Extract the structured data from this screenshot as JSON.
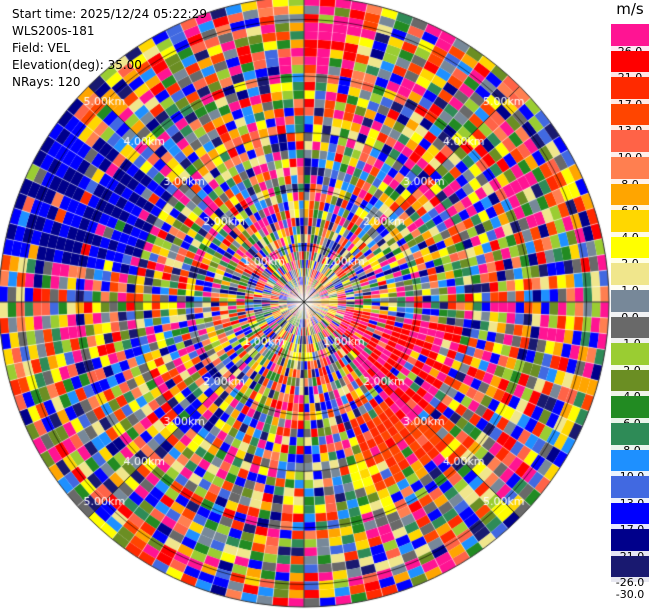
{
  "info": {
    "start_time": "Start time: 2025/12/24 05:22:29",
    "instrument": "WLS200s-181",
    "field": "Field: VEL",
    "elevation": "Elevation(deg): 35.00",
    "nrays": "NRays: 120"
  },
  "colorbar": {
    "unit": "m/s",
    "levels": [
      "26.0",
      "21.0",
      "17.0",
      "13.0",
      "10.0",
      "8.0",
      "6.0",
      "4.0",
      "2.0",
      "1.0",
      "0.0",
      "-1.0",
      "-2.0",
      "-4.0",
      "-6.0",
      "-8.0",
      "-10.0",
      "-13.0",
      "-17.0",
      "-21.0",
      "-26.0"
    ],
    "bottom_label": "-30.0",
    "colors": [
      "#ff1493",
      "#ff0000",
      "#ff2a00",
      "#ff4500",
      "#ff6347",
      "#ff7f50",
      "#ffa500",
      "#ffd700",
      "#ffff00",
      "#f0e68c",
      "#778899",
      "#696969",
      "#9acd32",
      "#6b8e23",
      "#228b22",
      "#2e8b57",
      "#1e90ff",
      "#4169e1",
      "#0000ff",
      "#00008b",
      "#191970"
    ]
  },
  "chart_data": {
    "type": "heatmap",
    "projection": "polar-ppi",
    "field": "VEL",
    "units": "m/s",
    "n_rays": 120,
    "range_rings": [
      "1.00km",
      "2.00km",
      "3.00km",
      "4.00km",
      "5.00km"
    ],
    "max_range_km": 5.4,
    "value_range": [
      -30.0,
      26.0
    ],
    "note_regions": [
      {
        "azimuth_deg_range": [
          100,
          140
        ],
        "range_km": [
          0.7,
          2.8
        ],
        "dominant_value_ms": 26
      },
      {
        "azimuth_deg_range": [
          130,
          160
        ],
        "range_km": [
          2.2,
          3.6
        ],
        "dominant_value_ms": 17
      },
      {
        "azimuth_deg_range": [
          155,
          165
        ],
        "range_km": [
          3.0,
          4.3
        ],
        "dominant_value_ms": 2
      },
      {
        "azimuth_deg_range": [
          160,
          170
        ],
        "range_km": [
          3.6,
          4.3
        ],
        "dominant_value_ms": -6
      },
      {
        "azimuth_deg_range": [
          80,
          110
        ],
        "range_km": [
          0.2,
          0.6
        ],
        "dominant_value_ms": 6
      },
      {
        "azimuth_deg_range": [
          190,
          220
        ],
        "range_km": [
          0.2,
          0.5
        ],
        "dominant_value_ms": -2
      },
      {
        "azimuth_deg_range": [
          280,
          310
        ],
        "range_km": [
          3.0,
          5.4
        ],
        "dominant_value_ms": -17
      },
      {
        "azimuth_deg_range": [
          0,
          12
        ],
        "range_km": [
          4.0,
          5.4
        ],
        "dominant_value_ms": 26
      }
    ],
    "background_distribution": "noise"
  }
}
